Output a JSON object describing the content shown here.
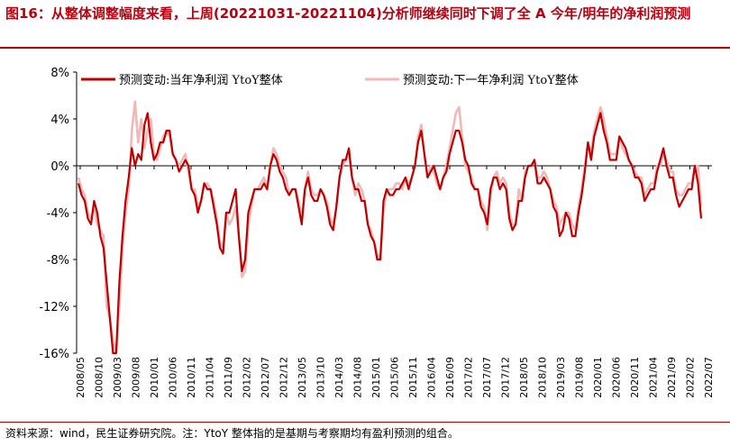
{
  "header": {
    "title": "图16：从整体调整幅度来看，上周(20221031-20221104)分析师继续同时下调了全 A 今年/明年的净利润预测"
  },
  "footer": {
    "source": "资料来源：wind，民生证券研究院。注：YtoY 整体指的是基期与考察期均有盈利预测的组合。"
  },
  "chart_data": {
    "type": "line",
    "ylim": [
      -16,
      8
    ],
    "yticks": [
      8,
      4,
      0,
      -4,
      -8,
      -12,
      -16
    ],
    "ytick_labels": [
      "8%",
      "4%",
      "0%",
      "-4%",
      "-8%",
      "-12%",
      "-16%"
    ],
    "xtick_labels": [
      "2008/05",
      "2008/10",
      "2009/03",
      "2009/08",
      "2010/01",
      "2010/06",
      "2010/11",
      "2011/04",
      "2011/09",
      "2012/02",
      "2012/07",
      "2012/12",
      "2013/05",
      "2013/10",
      "2014/03",
      "2014/08",
      "2015/01",
      "2015/06",
      "2015/11",
      "2016/04",
      "2016/09",
      "2017/02",
      "2017/07",
      "2017/12",
      "2018/05",
      "2018/10",
      "2019/03",
      "2019/08",
      "2020/01",
      "2020/06",
      "2020/11",
      "2021/04",
      "2021/09",
      "2022/02",
      "2022/07"
    ],
    "legend": [
      "预测变动:当年净利润 YtoY整体",
      "预测变动:下一年净利润 YtoY整体"
    ],
    "colors": [
      "#c00000",
      "#f0b8b8"
    ],
    "series": [
      {
        "name": "预测变动:当年净利润 YtoY整体",
        "values": [
          -1.5,
          -2.5,
          -3,
          -4.5,
          -5,
          -3,
          -4,
          -6,
          -7,
          -10,
          -13,
          -16,
          -16,
          -10,
          -6,
          -3,
          -1,
          1.5,
          0,
          1,
          0.5,
          3.5,
          4.5,
          2,
          0.5,
          1,
          2,
          2,
          3,
          3,
          1,
          0.5,
          -0.5,
          0,
          0.5,
          0,
          -2,
          -2.5,
          -4,
          -3,
          -1.5,
          -2,
          -2,
          -3.5,
          -5,
          -7,
          -7.5,
          -4,
          -4,
          -3,
          -2,
          -6,
          -9,
          -8,
          -4,
          -3,
          -2,
          -2,
          -2,
          -1.5,
          -2,
          0,
          1,
          0.5,
          -0.5,
          -1,
          -2,
          -2.5,
          -2,
          -2,
          -3.5,
          -5,
          -2,
          -1,
          -2.5,
          -3,
          -3,
          -2,
          -2.5,
          -3.5,
          -5,
          -5.5,
          -3.5,
          -1,
          0.5,
          0.5,
          1.5,
          -1,
          -2,
          -2,
          -3,
          -3,
          -5,
          -6,
          -6.5,
          -8,
          -8,
          -3,
          -2,
          -2.5,
          -2.5,
          -2,
          -2,
          -1.5,
          -1,
          -2,
          -1,
          0,
          2,
          3,
          1,
          -1,
          -0.5,
          0,
          -1,
          -2,
          -1,
          -0.5,
          1,
          2,
          3,
          3,
          2,
          0.5,
          0,
          -1.5,
          -2,
          -2,
          -3.5,
          -4,
          -5,
          -2,
          -1,
          -1,
          -2,
          -1.5,
          -2,
          -4.5,
          -5.5,
          -5,
          -3,
          -3,
          -1,
          0,
          0,
          0.5,
          -1.5,
          -1.5,
          -1,
          -1.5,
          -2,
          -3.5,
          -4,
          -6,
          -5.5,
          -4,
          -4.5,
          -6,
          -6,
          -4,
          -2.5,
          -0.5,
          2,
          0.5,
          2.5,
          3.5,
          4.5,
          3,
          2,
          0.5,
          0.5,
          0.5,
          2.5,
          2,
          1.5,
          0.5,
          0,
          -1,
          -1,
          -1.5,
          -3,
          -2.5,
          -2,
          -2,
          -0.5,
          0.5,
          1.5,
          0,
          -1,
          -1,
          -2.5,
          -3.5,
          -3,
          -2.5,
          -2,
          -2,
          0,
          -1.5,
          -4.5
        ]
      },
      {
        "name": "预测变动:下一年净利润 YtoY整体",
        "values": [
          -1,
          -2,
          -2.5,
          -4,
          -4.5,
          -3.5,
          -5,
          -5.5,
          -6,
          -12,
          -13,
          -15,
          -16,
          -12,
          -7,
          -4,
          -2,
          3,
          5.5,
          2,
          4,
          1.5,
          3,
          4,
          1,
          0.5,
          1.5,
          2.5,
          3,
          2.5,
          1,
          0.5,
          0,
          0.5,
          1,
          -0.5,
          -2,
          -2,
          -3.5,
          -3,
          -1.5,
          -1.5,
          -2,
          -3,
          -4.5,
          -6.5,
          -7,
          -4,
          -5,
          -4.5,
          -3.5,
          -6,
          -9.5,
          -9,
          -5,
          -3.5,
          -2,
          -2,
          -1.5,
          -1,
          -2,
          0,
          1.5,
          1,
          0,
          -0.5,
          -1,
          -2.5,
          -2,
          -2,
          -3,
          -4.5,
          -2,
          -0.5,
          -2,
          -2.5,
          -2.5,
          -2,
          -2.5,
          -3,
          -4.5,
          -5,
          -3.5,
          -1,
          0,
          0.5,
          1,
          -1,
          -2.5,
          -1.5,
          -2,
          -3,
          -5,
          -5.5,
          -6.5,
          -7.5,
          -8,
          -4,
          -2,
          -2,
          -2,
          -1.5,
          -1.5,
          -2,
          -1,
          -1.5,
          -1,
          0,
          2.5,
          3.5,
          1,
          -1,
          0,
          -0.5,
          -1.5,
          -2,
          -1,
          0,
          1.5,
          3,
          4.5,
          5,
          2.5,
          0,
          -0.5,
          -1,
          -2,
          -2,
          -3,
          -3.5,
          -5.5,
          -2.5,
          -1,
          -0.5,
          -1.5,
          -1,
          -1.5,
          -4,
          -5,
          -5,
          -2,
          -3,
          -0.5,
          0,
          0,
          0.5,
          -1,
          -1,
          -0.5,
          -1,
          -2,
          -3,
          -3.5,
          -5,
          -4.5,
          -4,
          -4,
          -5,
          -5.5,
          -3.5,
          -2,
          0,
          2,
          1,
          3,
          4,
          5,
          4,
          2.5,
          1,
          1,
          1,
          2.5,
          1.5,
          1,
          0.5,
          0,
          -0.5,
          -1,
          -1,
          -2.5,
          -2,
          -1.5,
          -1.5,
          0,
          0,
          1,
          0.5,
          -0.5,
          -0.5,
          -2,
          -2.5,
          -2.5,
          -2,
          -1.5,
          -1.5,
          0,
          0,
          -3.5
        ]
      }
    ]
  }
}
